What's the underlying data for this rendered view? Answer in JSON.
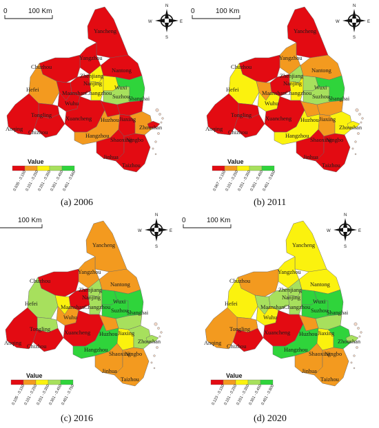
{
  "colors": {
    "c1": "#e30b12",
    "c2": "#f39a1f",
    "c3": "#fbf20e",
    "c4": "#a7e05d",
    "c5": "#2fd43b",
    "border": "#6a6a6a"
  },
  "scale": {
    "zero": "0",
    "label": "100 Km"
  },
  "compass": {
    "n": "N",
    "e": "E",
    "s": "S",
    "w": "W"
  },
  "legend_title": "Value",
  "panels": [
    {
      "caption": "(a) 2006",
      "legend_ranges": [
        "0.035 - 0.150",
        "0.151 - 0.250",
        "0.251 - 0.350",
        "0.351 - 0.450",
        "0.451 - 0.560"
      ],
      "cities": {
        "Yancheng": 1,
        "Yangzhou": 1,
        "Chuzhou": 1,
        "Nantong": 1,
        "Zhenjiang": 3,
        "Nanjing": 1,
        "Hefei": 2,
        "Maanshan": 1,
        "Changzhou": 3,
        "Wuxi": 3,
        "Suzhou": 4,
        "Shanghai": 5,
        "Wuhu": 1,
        "Tongling": 1,
        "Xuancheng": 1,
        "Huzhou": 1,
        "Jiaxing": 1,
        "Anqing": 1,
        "Chizhou": 1,
        "Hangzhou": 2,
        "Shaoxing": 1,
        "Ningbo": 2,
        "Zhoushan": 1,
        "Jinhua": 1,
        "Taizhou": 1
      }
    },
    {
      "caption": "(b) 2011",
      "legend_ranges": [
        "0.067 - 0.150",
        "0.151 - 0.250",
        "0.251 - 0.350",
        "0.351 - 0.450",
        "0.451 - 0.650"
      ],
      "cities": {
        "Yancheng": 1,
        "Yangzhou": 2,
        "Chuzhou": 1,
        "Nantong": 2,
        "Zhenjiang": 4,
        "Nanjing": 1,
        "Hefei": 3,
        "Maanshan": 2,
        "Changzhou": 3,
        "Wuxi": 4,
        "Suzhou": 4,
        "Shanghai": 5,
        "Wuhu": 3,
        "Tongling": 1,
        "Xuancheng": 1,
        "Huzhou": 2,
        "Jiaxing": 2,
        "Anqing": 1,
        "Chizhou": 1,
        "Hangzhou": 3,
        "Shaoxing": 2,
        "Ningbo": 3,
        "Zhoushan": 3,
        "Jinhua": 1,
        "Taizhou": 1
      }
    },
    {
      "caption": "(c) 2016",
      "legend_ranges": [
        "0.105 - 0.150",
        "0.151 - 0.250",
        "0.251 - 0.350",
        "0.351 - 0.450",
        "0.451 - 0.750"
      ],
      "cities": {
        "Yancheng": 2,
        "Yangzhou": 2,
        "Chuzhou": 1,
        "Nantong": 2,
        "Zhenjiang": 4,
        "Nanjing": 1,
        "Hefei": 4,
        "Maanshan": 3,
        "Changzhou": 4,
        "Wuxi": 5,
        "Suzhou": 5,
        "Shanghai": 5,
        "Wuhu": 2,
        "Tongling": 4,
        "Xuancheng": 1,
        "Huzhou": 2,
        "Jiaxing": 4,
        "Anqing": 1,
        "Chizhou": 1,
        "Hangzhou": 5,
        "Shaoxing": 3,
        "Ningbo": 4,
        "Zhoushan": 4,
        "Jinhua": 2,
        "Taizhou": 2
      }
    },
    {
      "caption": "(d) 2020",
      "legend_ranges": [
        "0.123 - 0.150",
        "0.151 - 0.250",
        "0.251 - 0.350",
        "0.351 - 0.450",
        "0.451 - 0.800"
      ],
      "cities": {
        "Yancheng": 3,
        "Yangzhou": 3,
        "Chuzhou": 2,
        "Nantong": 3,
        "Zhenjiang": 4,
        "Nanjing": 4,
        "Hefei": 3,
        "Maanshan": 4,
        "Changzhou": 4,
        "Wuxi": 5,
        "Suzhou": 5,
        "Shanghai": 5,
        "Wuhu": 3,
        "Tongling": 2,
        "Xuancheng": 1,
        "Huzhou": 2,
        "Jiaxing": 4,
        "Anqing": 2,
        "Chizhou": 1,
        "Hangzhou": 5,
        "Shaoxing": 3,
        "Ningbo": 5,
        "Zhoushan": 4,
        "Jinhua": 2,
        "Taizhou": 2
      }
    }
  ]
}
